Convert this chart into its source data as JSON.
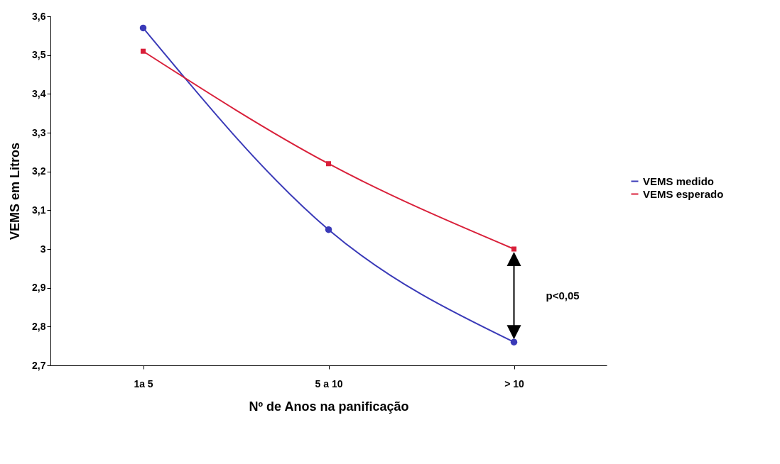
{
  "chart_data": {
    "type": "line",
    "xlabel": "Nº de Anos na panificação",
    "ylabel": "VEMS em Litros",
    "categories": [
      "1a 5",
      "5 a 10",
      "> 10"
    ],
    "series": [
      {
        "name": "VEMS medido",
        "color": "#3a3ab8",
        "marker": "circle",
        "values": [
          3.57,
          3.05,
          2.76
        ]
      },
      {
        "name": "VEMS esperado",
        "color": "#d9203a",
        "marker": "square",
        "values": [
          3.51,
          3.22,
          3.0
        ]
      }
    ],
    "ylim": [
      2.7,
      3.6
    ],
    "yticks": [
      {
        "value": 2.7,
        "label": "2,7"
      },
      {
        "value": 2.8,
        "label": "2,8"
      },
      {
        "value": 2.9,
        "label": "2,9"
      },
      3,
      {
        "value": 3.1,
        "label": "3,1"
      },
      {
        "value": 3.2,
        "label": "3,2"
      },
      {
        "value": 3.3,
        "label": "3,3"
      },
      {
        "value": 3.4,
        "label": "3,4"
      },
      {
        "value": 3.5,
        "label": "3,5"
      },
      {
        "value": 3.6,
        "label": "3,6"
      }
    ],
    "annotations": [
      "p<0,05"
    ],
    "grid": false,
    "legend": "right",
    "line_style": "solid"
  }
}
